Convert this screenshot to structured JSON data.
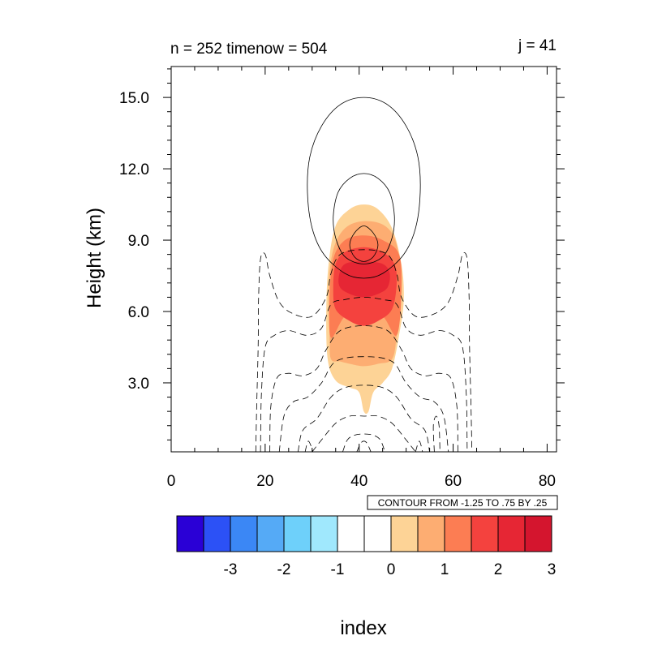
{
  "chart_data": {
    "type": "contour",
    "title_left": "n = 252 timenow = 504",
    "title_right": "j = 41",
    "xlabel": "index",
    "ylabel": "Height (km)",
    "xlim": [
      0,
      82
    ],
    "ylim": [
      0.1,
      16.3
    ],
    "x_ticks": [
      {
        "v": 0,
        "label": "0"
      },
      {
        "v": 20,
        "label": "20"
      },
      {
        "v": 40,
        "label": "40"
      },
      {
        "v": 60,
        "label": "60"
      },
      {
        "v": 80,
        "label": "80"
      }
    ],
    "y_ticks": [
      {
        "v": 3,
        "label": "3.0"
      },
      {
        "v": 6,
        "label": "6.0"
      },
      {
        "v": 9,
        "label": "9.0"
      },
      {
        "v": 12,
        "label": "12.0"
      },
      {
        "v": 15,
        "label": "15.0"
      }
    ],
    "contour_info": "CONTOUR FROM -1.25 TO .75 BY .25",
    "colorbar": {
      "colors": [
        "#2a00d6",
        "#2c51f6",
        "#3b87f5",
        "#55aaf6",
        "#6ed0fa",
        "#a0e8fd",
        "#ffffff",
        "#ffffff",
        "#fdd396",
        "#fdad72",
        "#fc7d53",
        "#f4423e",
        "#e62634",
        "#d4152e"
      ],
      "labels": [
        {
          "i": 1,
          "label": "-3"
        },
        {
          "i": 2,
          "label": "-2"
        },
        {
          "i": 3,
          "label": "-1"
        },
        {
          "i": 4,
          "label": "0"
        },
        {
          "i": 5,
          "label": "1"
        },
        {
          "i": 6,
          "label": "2"
        },
        {
          "i": 7,
          "label": "3"
        }
      ]
    },
    "filled_levels": [
      {
        "level": 1.0,
        "color": "#fdd396",
        "points": [
          [
            42,
            1.8
          ],
          [
            43,
            2.6
          ],
          [
            45,
            3.0
          ],
          [
            47,
            3.6
          ],
          [
            48.5,
            5.0
          ],
          [
            49.5,
            6.5
          ],
          [
            49,
            8.0
          ],
          [
            47,
            9.5
          ],
          [
            44,
            10.3
          ],
          [
            41,
            10.5
          ],
          [
            38,
            10.3
          ],
          [
            35,
            9.6
          ],
          [
            33.5,
            8.0
          ],
          [
            33,
            6.0
          ],
          [
            33.3,
            4.0
          ],
          [
            35,
            3.1
          ],
          [
            38,
            2.8
          ],
          [
            40,
            2.6
          ],
          [
            41,
            1.8
          ]
        ]
      },
      {
        "level": 1.5,
        "color": "#fdad72",
        "points": [
          [
            34,
            4.0
          ],
          [
            36,
            3.9
          ],
          [
            38,
            3.8
          ],
          [
            41,
            3.7
          ],
          [
            44,
            3.8
          ],
          [
            47,
            4.0
          ],
          [
            48,
            5.0
          ],
          [
            49,
            7.0
          ],
          [
            48,
            8.8
          ],
          [
            45.5,
            9.6
          ],
          [
            41,
            9.8
          ],
          [
            37,
            9.5
          ],
          [
            34.5,
            8.6
          ],
          [
            33.5,
            7.0
          ],
          [
            33.7,
            5.0
          ]
        ]
      },
      {
        "level": 2.0,
        "color": "#fc7d53",
        "points": [
          [
            34,
            4.9
          ],
          [
            37,
            5.8
          ],
          [
            41,
            6.0
          ],
          [
            45,
            5.8
          ],
          [
            48,
            5.0
          ],
          [
            49,
            6.8
          ],
          [
            48.5,
            8.4
          ],
          [
            45,
            9.0
          ],
          [
            41,
            9.2
          ],
          [
            37,
            9.0
          ],
          [
            34.5,
            8.2
          ],
          [
            33.7,
            6.5
          ]
        ]
      },
      {
        "level": 2.5,
        "color": "#f4423e",
        "points": [
          [
            35,
            6.1
          ],
          [
            38,
            5.6
          ],
          [
            41,
            5.4
          ],
          [
            44,
            5.6
          ],
          [
            47,
            6.1
          ],
          [
            48,
            7.2
          ],
          [
            47.5,
            8.0
          ],
          [
            45,
            8.5
          ],
          [
            41,
            8.7
          ],
          [
            37,
            8.5
          ],
          [
            35,
            8.0
          ],
          [
            34.5,
            7.0
          ]
        ]
      },
      {
        "level": 3.0,
        "color": "#e62634",
        "points": [
          [
            36,
            7.0
          ],
          [
            38.5,
            6.7
          ],
          [
            41,
            6.6
          ],
          [
            43.5,
            6.7
          ],
          [
            46,
            7.0
          ],
          [
            46.5,
            7.6
          ],
          [
            45,
            8.0
          ],
          [
            41,
            8.1
          ],
          [
            37,
            8.0
          ],
          [
            35.7,
            7.5
          ]
        ]
      }
    ],
    "contours_positive": [
      [
        [
          41,
          15.0
        ],
        [
          36,
          14.7
        ],
        [
          32,
          13.8
        ],
        [
          29.5,
          12.5
        ],
        [
          29,
          11.0
        ],
        [
          30,
          9.5
        ],
        [
          32.5,
          8.4
        ],
        [
          37,
          7.6
        ],
        [
          41,
          7.4
        ],
        [
          45,
          7.6
        ],
        [
          49.5,
          8.4
        ],
        [
          52,
          9.5
        ],
        [
          53,
          11.0
        ],
        [
          52.5,
          12.5
        ],
        [
          50,
          13.8
        ],
        [
          46,
          14.7
        ]
      ],
      [
        [
          41,
          11.8
        ],
        [
          38,
          11.6
        ],
        [
          35.5,
          11.0
        ],
        [
          34.5,
          10.0
        ],
        [
          35,
          9.1
        ],
        [
          37,
          8.3
        ],
        [
          41,
          8.0
        ],
        [
          45,
          8.3
        ],
        [
          47,
          9.1
        ],
        [
          47.5,
          10.0
        ],
        [
          46.5,
          11.0
        ],
        [
          44,
          11.6
        ]
      ],
      [
        [
          41,
          9.6
        ],
        [
          39,
          9.3
        ],
        [
          38,
          8.8
        ],
        [
          39,
          8.3
        ],
        [
          41,
          8.1
        ],
        [
          43,
          8.3
        ],
        [
          44,
          8.8
        ],
        [
          43,
          9.3
        ]
      ]
    ],
    "contours_negative": [
      {
        "closed": false,
        "points": [
          [
            18,
            0.1
          ],
          [
            18.2,
            2.0
          ],
          [
            18.5,
            4.5
          ],
          [
            18.6,
            6.5
          ],
          [
            19,
            8.2
          ],
          [
            20,
            8.4
          ],
          [
            21,
            7.5
          ],
          [
            23,
            6.4
          ],
          [
            26,
            5.9
          ],
          [
            30,
            5.8
          ],
          [
            33,
            6.6
          ],
          [
            34,
            7.6
          ],
          [
            36,
            8.4
          ],
          [
            41,
            8.6
          ],
          [
            46,
            8.4
          ],
          [
            48,
            7.6
          ],
          [
            49,
            6.6
          ],
          [
            52,
            5.8
          ],
          [
            56,
            5.9
          ],
          [
            59,
            6.4
          ],
          [
            61,
            7.5
          ],
          [
            62,
            8.4
          ],
          [
            63,
            8.2
          ],
          [
            63.4,
            6.5
          ],
          [
            63.5,
            4.5
          ],
          [
            63.8,
            2.0
          ],
          [
            64,
            0.1
          ]
        ]
      },
      {
        "closed": false,
        "points": [
          [
            19,
            0.1
          ],
          [
            19.2,
            2.5
          ],
          [
            20,
            4.5
          ],
          [
            22,
            5.0
          ],
          [
            25,
            5.2
          ],
          [
            29,
            5.0
          ],
          [
            32,
            5.3
          ],
          [
            34,
            6.3
          ],
          [
            37,
            6.5
          ],
          [
            41,
            6.6
          ],
          [
            45,
            6.5
          ],
          [
            48,
            6.3
          ],
          [
            50,
            5.3
          ],
          [
            53,
            5.0
          ],
          [
            57,
            5.2
          ],
          [
            60,
            5.0
          ],
          [
            62,
            4.5
          ],
          [
            62.8,
            2.5
          ],
          [
            63,
            0.1
          ]
        ]
      },
      {
        "closed": false,
        "points": [
          [
            21,
            0.1
          ],
          [
            21.2,
            2.0
          ],
          [
            22.5,
            3.2
          ],
          [
            25,
            3.4
          ],
          [
            28,
            3.3
          ],
          [
            31,
            3.6
          ],
          [
            33,
            4.4
          ],
          [
            36,
            5.2
          ],
          [
            41,
            5.4
          ],
          [
            46,
            5.2
          ],
          [
            49,
            4.4
          ],
          [
            51,
            3.6
          ],
          [
            54,
            3.3
          ],
          [
            57,
            3.4
          ],
          [
            59.5,
            3.2
          ],
          [
            60.8,
            2.0
          ],
          [
            61,
            0.1
          ]
        ]
      },
      {
        "closed": false,
        "points": [
          [
            23,
            0.1
          ],
          [
            24,
            1.6
          ],
          [
            26,
            2.2
          ],
          [
            29,
            2.4
          ],
          [
            32,
            3.0
          ],
          [
            35,
            3.9
          ],
          [
            41,
            4.1
          ],
          [
            47,
            3.9
          ],
          [
            50,
            3.0
          ],
          [
            53,
            2.4
          ],
          [
            56,
            2.2
          ],
          [
            58,
            1.6
          ],
          [
            59,
            0.1
          ]
        ]
      },
      {
        "closed": false,
        "points": [
          [
            27,
            0.1
          ],
          [
            28,
            1.0
          ],
          [
            31,
            1.5
          ],
          [
            34,
            2.4
          ],
          [
            37,
            2.8
          ],
          [
            41,
            2.9
          ],
          [
            45,
            2.8
          ],
          [
            48,
            2.4
          ],
          [
            51,
            1.5
          ],
          [
            54,
            1.0
          ],
          [
            55,
            0.1
          ]
        ]
      },
      {
        "closed": false,
        "points": [
          [
            30,
            0.1
          ],
          [
            32,
            0.6
          ],
          [
            35,
            1.3
          ],
          [
            38,
            1.6
          ],
          [
            41,
            1.6
          ],
          [
            44,
            1.6
          ],
          [
            47,
            1.3
          ],
          [
            50,
            0.6
          ],
          [
            52,
            0.1
          ]
        ]
      },
      {
        "closed": false,
        "points": [
          [
            28.5,
            0.1
          ],
          [
            29.2,
            0.55
          ],
          [
            30.2,
            0.1
          ]
        ]
      },
      {
        "closed": false,
        "points": [
          [
            36.5,
            0.1
          ],
          [
            37.5,
            0.6
          ],
          [
            39,
            0.8
          ],
          [
            41,
            0.85
          ],
          [
            43,
            0.8
          ],
          [
            44.5,
            0.6
          ],
          [
            45.5,
            0.1
          ]
        ]
      },
      {
        "closed": false,
        "points": [
          [
            39.5,
            0.1
          ],
          [
            40.3,
            0.45
          ],
          [
            41,
            0.55
          ],
          [
            41.7,
            0.45
          ],
          [
            42.5,
            0.1
          ]
        ]
      },
      {
        "closed": false,
        "points": [
          [
            52,
            0.1
          ],
          [
            52.8,
            0.55
          ],
          [
            53.5,
            0.1
          ]
        ]
      },
      {
        "closed": false,
        "points": [
          [
            56,
            0.1
          ],
          [
            55.8,
            1.2
          ],
          [
            56.4,
            1.6
          ],
          [
            57,
            1.2
          ],
          [
            57.2,
            0.1
          ]
        ]
      }
    ]
  }
}
